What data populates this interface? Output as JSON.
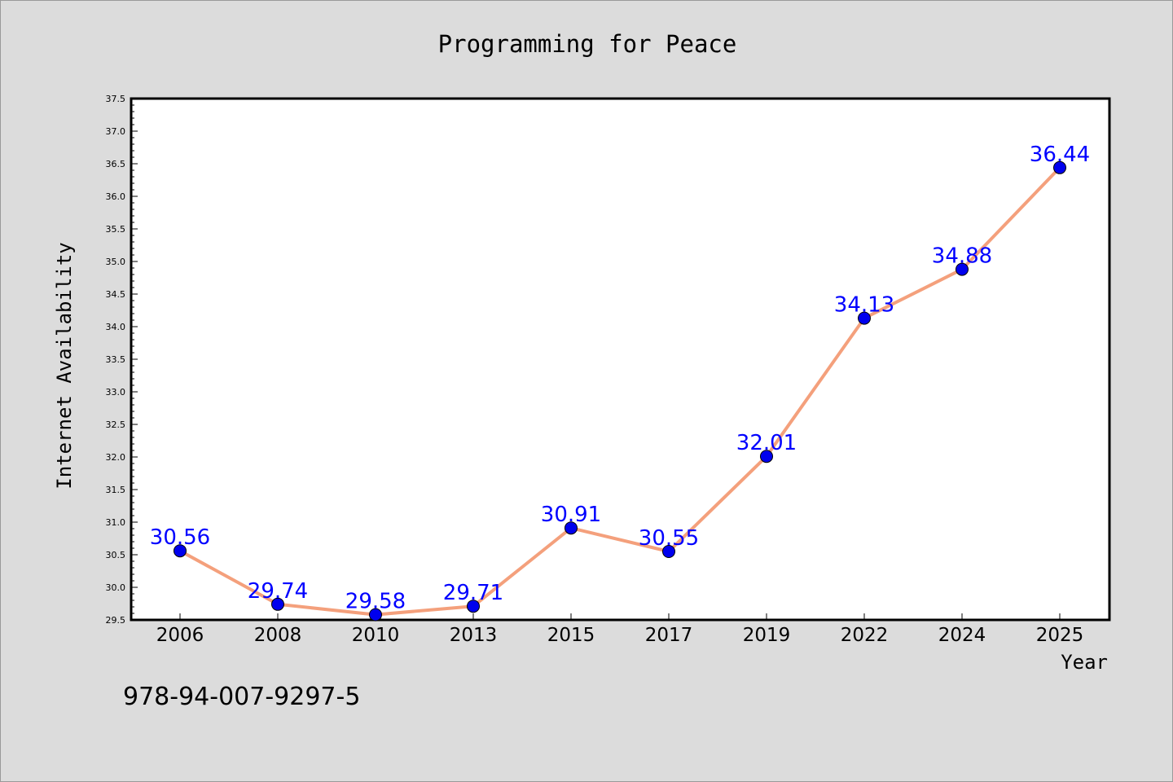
{
  "chart_data": {
    "type": "line",
    "title": "Programming for Peace",
    "xlabel": "Year",
    "ylabel": "Internet Availability",
    "categories": [
      "2006",
      "2008",
      "2010",
      "2013",
      "2015",
      "2017",
      "2019",
      "2022",
      "2024",
      "2025"
    ],
    "series": [
      {
        "values": [
          30.56,
          29.74,
          29.58,
          29.71,
          30.91,
          30.55,
          32.01,
          34.13,
          34.88,
          36.44
        ],
        "line_color": "#f4a07c",
        "marker_color": "#0000ee"
      }
    ],
    "data_labels": [
      "30.56",
      "29.74",
      "29.58",
      "29.71",
      "30.91",
      "30.55",
      "32.01",
      "34.13",
      "34.88",
      "36.44"
    ],
    "y_tick_labels": [
      "29.5",
      "30.0",
      "30.5",
      "31.0",
      "31.5",
      "32.0",
      "32.5",
      "33.0",
      "33.5",
      "34.0",
      "34.5",
      "35.0",
      "35.5",
      "36.0",
      "36.5",
      "37.0",
      "37.5"
    ],
    "ylim": [
      29.5,
      37.5
    ],
    "grid": false,
    "label_color": "#0000ff"
  },
  "footer_text": "978-94-007-9297-5"
}
